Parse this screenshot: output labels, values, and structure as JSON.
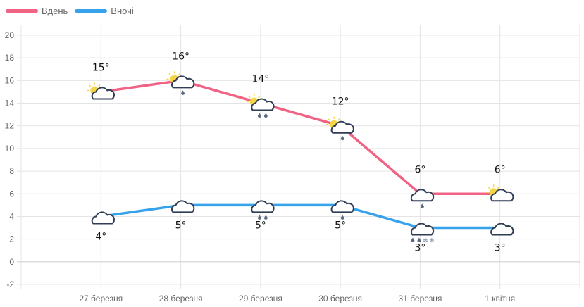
{
  "chart_data": {
    "type": "line",
    "categories": [
      "27 березня",
      "28 березня",
      "29 березня",
      "30 березня",
      "31 березня",
      "1 квітня"
    ],
    "series": [
      {
        "name": "Вдень",
        "color": "#f06384",
        "values": [
          15,
          16,
          14,
          12,
          6,
          6
        ],
        "labels": [
          "15°",
          "16°",
          "14°",
          "12°",
          "6°",
          "6°"
        ],
        "icons": [
          "sun-cloud",
          "sun-cloud-rain1",
          "sun-cloud-rain2",
          "sun-cloud-rain1",
          "cloud-rain1",
          "sun-cloud"
        ]
      },
      {
        "name": "Вночі",
        "color": "#36a2eb",
        "values": [
          4,
          5,
          5,
          5,
          3,
          3
        ],
        "labels": [
          "4°",
          "5°",
          "5°",
          "5°",
          "3°",
          "3°"
        ],
        "icons": [
          "moon-cloud",
          "moon-cloud",
          "moon-cloud-rain2",
          "moon-cloud-rain1",
          "cloud-rain2-snow2",
          "moon-cloud"
        ]
      }
    ],
    "ylim": [
      -2,
      20
    ],
    "yticks": [
      "20",
      "18",
      "16",
      "14",
      "12",
      "10",
      "8",
      "6",
      "4",
      "2",
      "0",
      "-2"
    ],
    "grid": true,
    "legend": "top-left"
  }
}
